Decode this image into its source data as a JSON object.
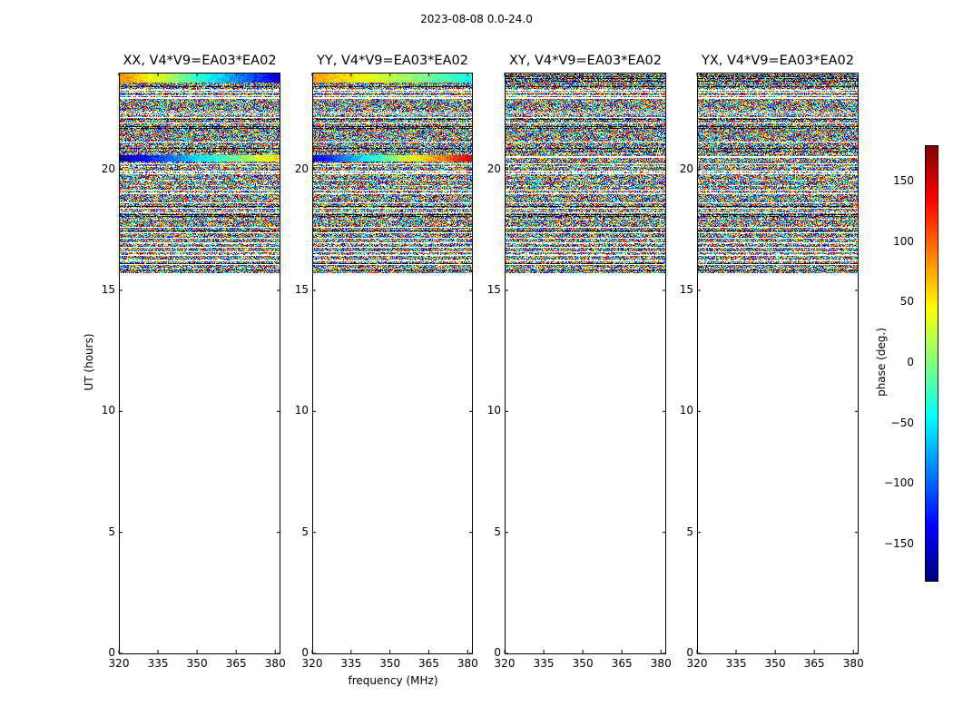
{
  "chart_data": {
    "type": "heatmap",
    "suptitle": "2023-08-08 0.0-24.0",
    "xlabel": "frequency (MHz)",
    "ylabel": "UT (hours)",
    "xlim": [
      320,
      382
    ],
    "ylim": [
      0,
      24
    ],
    "xticks": [
      320,
      335,
      350,
      365,
      380
    ],
    "yticks": [
      0,
      5,
      10,
      15,
      20
    ],
    "data_start_ut": 15.75,
    "colorbar": {
      "label": "phase (deg.)",
      "range": [
        -180,
        180
      ],
      "ticks": [
        -150,
        -100,
        -50,
        0,
        50,
        100,
        150
      ],
      "colormap": "jet"
    },
    "panels": [
      {
        "title": "XX, V4*V9=EA03*EA02",
        "pol": "XX",
        "coherent_bands": [
          {
            "ut_start": 23.6,
            "ut_end": 24.0,
            "phase_start": 90,
            "phase_end": -150
          },
          {
            "ut_start": 20.35,
            "ut_end": 20.6,
            "phase_start": -170,
            "phase_end": 60
          }
        ]
      },
      {
        "title": "YY, V4*V9=EA03*EA02",
        "pol": "YY",
        "coherent_bands": [
          {
            "ut_start": 23.6,
            "ut_end": 24.0,
            "phase_start": 80,
            "phase_end": -40
          },
          {
            "ut_start": 20.35,
            "ut_end": 20.6,
            "phase_start": -150,
            "phase_end": 150
          }
        ]
      },
      {
        "title": "XY, V4*V9=EA03*EA02",
        "pol": "XY",
        "coherent_bands": []
      },
      {
        "title": "YX, V4*V9=EA03*EA02",
        "pol": "YX",
        "coherent_bands": []
      }
    ]
  }
}
